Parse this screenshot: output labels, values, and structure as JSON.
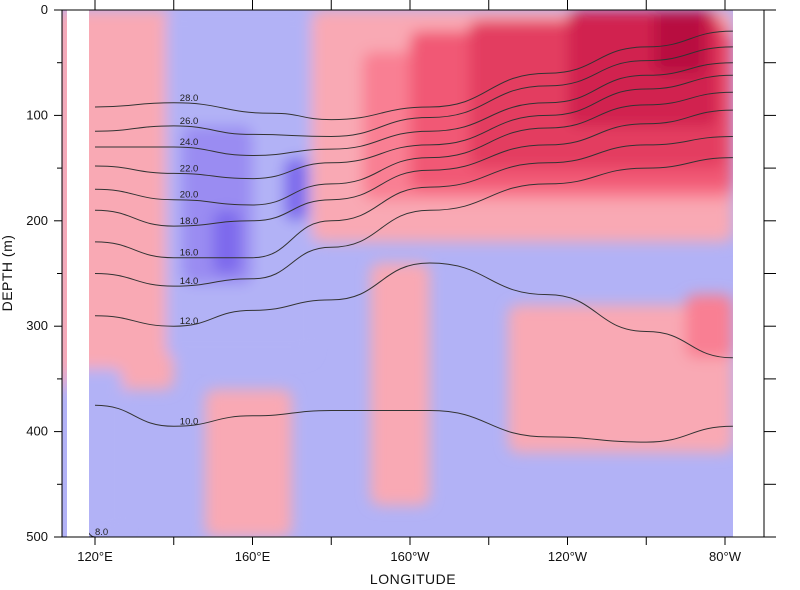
{
  "chart_data": {
    "type": "heatmap",
    "title": "",
    "xlabel": "LONGITUDE",
    "ylabel": "DEPTH (m)",
    "x_ticks": [
      "120°E",
      "160°E",
      "160°W",
      "120°W",
      "80°W"
    ],
    "x_tick_values": [
      120,
      160,
      200,
      240,
      280
    ],
    "xlim": [
      110,
      285
    ],
    "y_ticks": [
      "0",
      "100",
      "200",
      "300",
      "400",
      "500"
    ],
    "y_tick_values": [
      0,
      100,
      200,
      300,
      400,
      500
    ],
    "ylim": [
      0,
      500
    ],
    "y_inverted": true,
    "colors": {
      "neg_strong": "#7d69ec",
      "neg_medium": "#9a8cf2",
      "neg_light": "#b2b2f6",
      "pos_light": "#f9a9b4",
      "pos_1": "#f97f93",
      "pos_2": "#f15875",
      "pos_3": "#e33c60",
      "pos_4": "#d1244f",
      "pos_5": "#b81040",
      "contour": "#333333"
    },
    "anomaly_fields": [
      {
        "sign": "pos",
        "level": 0,
        "lon": [
          110,
          140
        ],
        "depth": [
          0,
          360
        ]
      },
      {
        "sign": "neg",
        "level": 0,
        "lon": [
          113,
          127
        ],
        "depth": [
          340,
          500
        ]
      },
      {
        "sign": "neg",
        "level": 0,
        "lon": [
          138,
          175
        ],
        "depth": [
          0,
          330
        ]
      },
      {
        "sign": "neg",
        "level": 1,
        "lon": [
          142,
          160
        ],
        "depth": [
          110,
          260
        ]
      },
      {
        "sign": "neg",
        "level": 2,
        "lon": [
          150,
          157
        ],
        "depth": [
          190,
          250
        ]
      },
      {
        "sign": "neg",
        "level": 2,
        "lon": [
          168,
          174
        ],
        "depth": [
          140,
          200
        ]
      },
      {
        "sign": "pos",
        "level": 0,
        "lon": [
          175,
          282
        ],
        "depth": [
          0,
          220
        ]
      },
      {
        "sign": "pos",
        "level": 1,
        "lon": [
          188,
          282
        ],
        "depth": [
          40,
          180
        ]
      },
      {
        "sign": "pos",
        "level": 2,
        "lon": [
          200,
          282
        ],
        "depth": [
          20,
          170
        ]
      },
      {
        "sign": "pos",
        "level": 3,
        "lon": [
          215,
          280
        ],
        "depth": [
          10,
          150
        ]
      },
      {
        "sign": "pos",
        "level": 4,
        "lon": [
          240,
          278
        ],
        "depth": [
          0,
          110
        ]
      },
      {
        "sign": "pos",
        "level": 5,
        "lon": [
          262,
          275
        ],
        "depth": [
          0,
          60
        ]
      },
      {
        "sign": "pos",
        "level": 0,
        "lon": [
          225,
          282
        ],
        "depth": [
          280,
          420
        ]
      },
      {
        "sign": "pos",
        "level": 1,
        "lon": [
          270,
          282
        ],
        "depth": [
          270,
          330
        ]
      },
      {
        "sign": "pos",
        "level": 0,
        "lon": [
          148,
          170
        ],
        "depth": [
          360,
          500
        ]
      },
      {
        "sign": "pos",
        "level": 0,
        "lon": [
          190,
          205
        ],
        "depth": [
          240,
          470
        ]
      }
    ],
    "isotherms": [
      {
        "label": "28.0",
        "points": [
          [
            120,
            92
          ],
          [
            140,
            88
          ],
          [
            165,
            98
          ],
          [
            180,
            104
          ],
          [
            205,
            92
          ],
          [
            235,
            60
          ],
          [
            260,
            35
          ],
          [
            282,
            20
          ]
        ]
      },
      {
        "label": "26.0",
        "points": [
          [
            120,
            115
          ],
          [
            140,
            110
          ],
          [
            160,
            118
          ],
          [
            180,
            120
          ],
          [
            205,
            102
          ],
          [
            235,
            72
          ],
          [
            260,
            48
          ],
          [
            282,
            35
          ]
        ]
      },
      {
        "label": "24.0",
        "points": [
          [
            120,
            130
          ],
          [
            140,
            130
          ],
          [
            160,
            138
          ],
          [
            180,
            132
          ],
          [
            205,
            115
          ],
          [
            235,
            88
          ],
          [
            260,
            62
          ],
          [
            282,
            50
          ]
        ]
      },
      {
        "label": "22.0",
        "points": [
          [
            120,
            148
          ],
          [
            140,
            155
          ],
          [
            160,
            160
          ],
          [
            180,
            145
          ],
          [
            205,
            128
          ],
          [
            235,
            100
          ],
          [
            260,
            75
          ],
          [
            282,
            62
          ]
        ]
      },
      {
        "label": "20.0",
        "points": [
          [
            120,
            170
          ],
          [
            140,
            180
          ],
          [
            160,
            185
          ],
          [
            180,
            165
          ],
          [
            205,
            140
          ],
          [
            235,
            112
          ],
          [
            260,
            90
          ],
          [
            282,
            78
          ]
        ]
      },
      {
        "label": "18.0",
        "points": [
          [
            120,
            190
          ],
          [
            140,
            205
          ],
          [
            160,
            200
          ],
          [
            180,
            180
          ],
          [
            205,
            152
          ],
          [
            235,
            128
          ],
          [
            260,
            108
          ],
          [
            282,
            95
          ]
        ]
      },
      {
        "label": "16.0",
        "points": [
          [
            120,
            220
          ],
          [
            140,
            235
          ],
          [
            160,
            235
          ],
          [
            180,
            200
          ],
          [
            205,
            168
          ],
          [
            235,
            145
          ],
          [
            260,
            128
          ],
          [
            282,
            120
          ]
        ]
      },
      {
        "label": "14.0",
        "points": [
          [
            120,
            250
          ],
          [
            140,
            262
          ],
          [
            160,
            255
          ],
          [
            180,
            225
          ],
          [
            205,
            190
          ],
          [
            235,
            165
          ],
          [
            260,
            150
          ],
          [
            282,
            140
          ]
        ]
      },
      {
        "label": "12.0",
        "points": [
          [
            120,
            290
          ],
          [
            140,
            300
          ],
          [
            160,
            285
          ],
          [
            180,
            275
          ],
          [
            205,
            240
          ],
          [
            235,
            270
          ],
          [
            260,
            305
          ],
          [
            282,
            330
          ]
        ]
      },
      {
        "label": "10.0",
        "points": [
          [
            120,
            375
          ],
          [
            140,
            395
          ],
          [
            160,
            385
          ],
          [
            180,
            380
          ],
          [
            205,
            380
          ],
          [
            235,
            405
          ],
          [
            260,
            410
          ],
          [
            282,
            395
          ]
        ]
      },
      {
        "label": "8.0",
        "points": [
          [
            115,
            480
          ],
          [
            120,
            500
          ]
        ]
      }
    ]
  }
}
